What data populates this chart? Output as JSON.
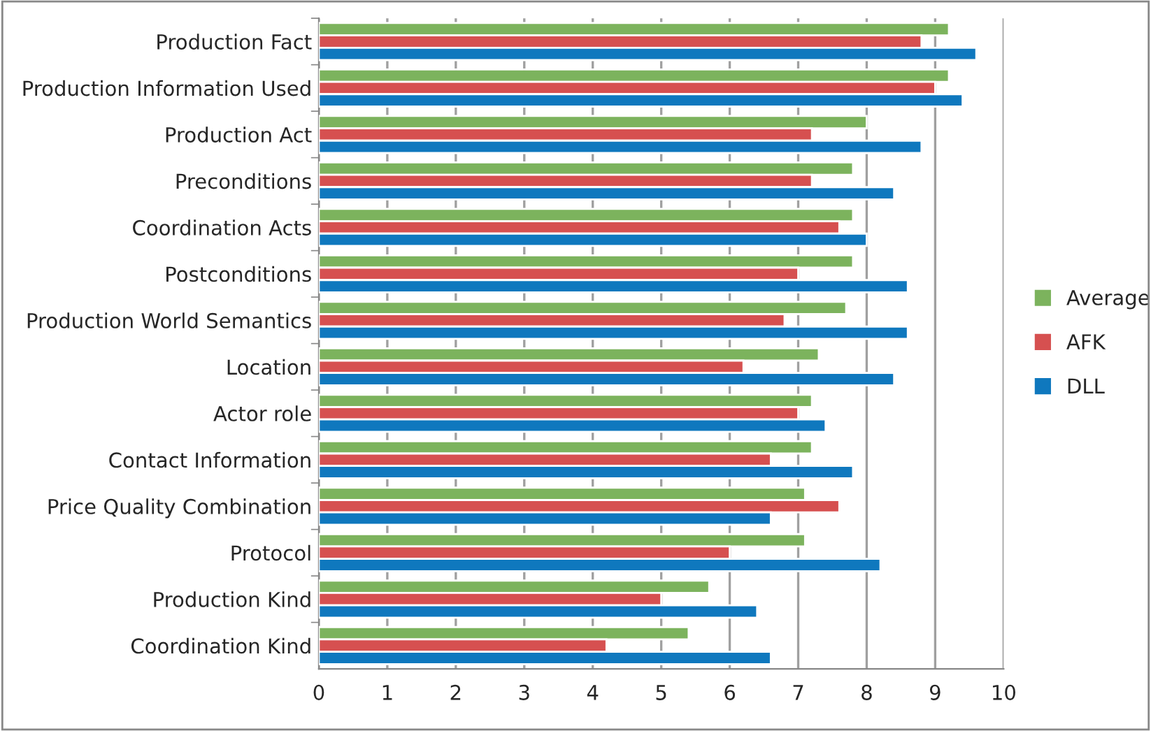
{
  "chart_data": {
    "type": "bar",
    "orientation": "horizontal",
    "categories": [
      "Production Fact",
      "Production Information Used",
      "Production Act",
      "Preconditions",
      "Coordination Acts",
      "Postconditions",
      "Production World Semantics",
      "Location",
      "Actor role",
      "Contact Information",
      "Price Quality Combination",
      "Protocol",
      "Production Kind",
      "Coordination Kind"
    ],
    "series": [
      {
        "name": "Average",
        "color": "#7cb35d",
        "values": [
          9.2,
          9.2,
          8.0,
          7.8,
          7.8,
          7.8,
          7.7,
          7.3,
          7.2,
          7.2,
          7.1,
          7.1,
          5.7,
          5.4
        ]
      },
      {
        "name": "AFK",
        "color": "#d65050",
        "values": [
          8.8,
          9.0,
          7.2,
          7.2,
          7.6,
          7.0,
          6.8,
          6.2,
          7.0,
          6.6,
          7.6,
          6.0,
          5.0,
          4.2
        ]
      },
      {
        "name": "DLL",
        "color": "#0f78be",
        "values": [
          9.6,
          9.4,
          8.8,
          8.4,
          8.0,
          8.6,
          8.6,
          8.4,
          7.4,
          7.8,
          6.6,
          8.2,
          6.4,
          6.6
        ]
      }
    ],
    "xlim": [
      0,
      10
    ],
    "xticks": [
      0,
      1,
      2,
      3,
      4,
      5,
      6,
      7,
      8,
      9,
      10
    ],
    "grid": "x",
    "legend": "right"
  }
}
